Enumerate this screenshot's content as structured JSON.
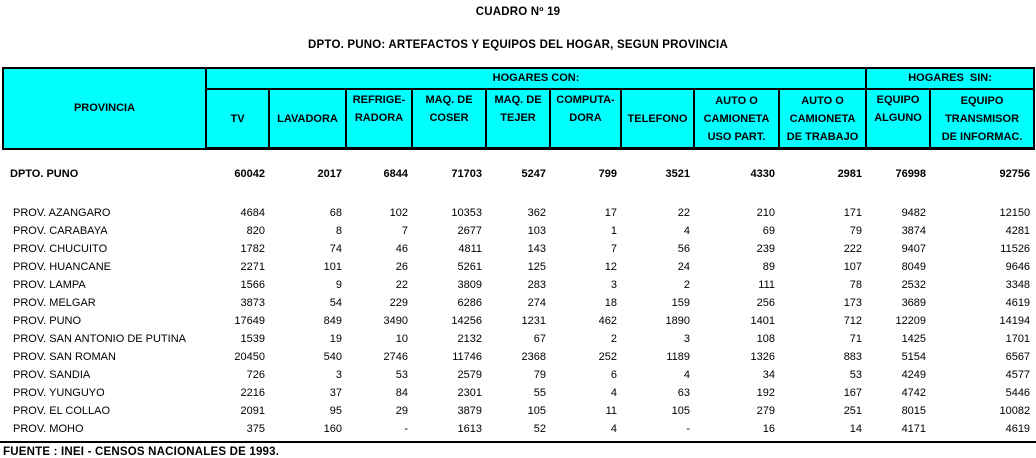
{
  "title": "CUADRO Nº 19",
  "subtitle": "DPTO. PUNO: ARTEFACTOS Y EQUIPOS DEL HOGAR, SEGUN PROVINCIA",
  "colors": {
    "header_bg": "#00FFFF",
    "border": "#000000",
    "page_bg": "#FFFFFF"
  },
  "table": {
    "group_headers": {
      "provincia": "PROVINCIA",
      "con": "HOGARES CON:",
      "sin": "HOGARES  SIN:"
    },
    "columns": [
      "TV",
      "LAVADORA",
      "REFRIGE-\nRADORA",
      "MAQ. DE\nCOSER",
      "MAQ. DE\nTEJER",
      "COMPUTA-\nDORA",
      "TELEFONO",
      "AUTO O\nCAMIONETA\nUSO PART.",
      "AUTO O\nCAMIONETA\nDE TRABAJO",
      "EQUIPO\nALGUNO",
      "EQUIPO\nTRANSMISOR\nDE INFORMAC."
    ],
    "total_row": {
      "label": "DPTO. PUNO",
      "values": [
        "60042",
        "2017",
        "6844",
        "71703",
        "5247",
        "799",
        "3521",
        "4330",
        "2981",
        "76998",
        "92756"
      ]
    },
    "rows": [
      {
        "label": "PROV. AZANGARO",
        "values": [
          "4684",
          "68",
          "102",
          "10353",
          "362",
          "17",
          "22",
          "210",
          "171",
          "9482",
          "12150"
        ]
      },
      {
        "label": "PROV. CARABAYA",
        "values": [
          "820",
          "8",
          "7",
          "2677",
          "103",
          "1",
          "4",
          "69",
          "79",
          "3874",
          "4281"
        ]
      },
      {
        "label": "PROV. CHUCUITO",
        "values": [
          "1782",
          "74",
          "46",
          "4811",
          "143",
          "7",
          "56",
          "239",
          "222",
          "9407",
          "11526"
        ]
      },
      {
        "label": "PROV. HUANCANE",
        "values": [
          "2271",
          "101",
          "26",
          "5261",
          "125",
          "12",
          "24",
          "89",
          "107",
          "8049",
          "9646"
        ]
      },
      {
        "label": "PROV. LAMPA",
        "values": [
          "1566",
          "9",
          "22",
          "3809",
          "283",
          "3",
          "2",
          "111",
          "78",
          "2532",
          "3348"
        ]
      },
      {
        "label": "PROV. MELGAR",
        "values": [
          "3873",
          "54",
          "229",
          "6286",
          "274",
          "18",
          "159",
          "256",
          "173",
          "3689",
          "4619"
        ]
      },
      {
        "label": "PROV. PUNO",
        "values": [
          "17649",
          "849",
          "3490",
          "14256",
          "1231",
          "462",
          "1890",
          "1401",
          "712",
          "12209",
          "14194"
        ]
      },
      {
        "label": "PROV. SAN ANTONIO DE PUTINA",
        "values": [
          "1539",
          "19",
          "10",
          "2132",
          "67",
          "2",
          "3",
          "108",
          "71",
          "1425",
          "1701"
        ]
      },
      {
        "label": "PROV. SAN ROMAN",
        "values": [
          "20450",
          "540",
          "2746",
          "11746",
          "2368",
          "252",
          "1189",
          "1326",
          "883",
          "5154",
          "6567"
        ]
      },
      {
        "label": "PROV. SANDIA",
        "values": [
          "726",
          "3",
          "53",
          "2579",
          "79",
          "6",
          "4",
          "34",
          "53",
          "4249",
          "4577"
        ]
      },
      {
        "label": "PROV. YUNGUYO",
        "values": [
          "2216",
          "37",
          "84",
          "2301",
          "55",
          "4",
          "63",
          "192",
          "167",
          "4742",
          "5446"
        ]
      },
      {
        "label": "PROV. EL COLLAO",
        "values": [
          "2091",
          "95",
          "29",
          "3879",
          "105",
          "11",
          "105",
          "279",
          "251",
          "8015",
          "10082"
        ]
      },
      {
        "label": "PROV. MOHO",
        "values": [
          "375",
          "160",
          "-",
          "1613",
          "52",
          "4",
          "-",
          "16",
          "14",
          "4171",
          "4619"
        ]
      }
    ]
  },
  "footer": {
    "source": "FUENTE : INEI - CENSOS NACIONALES DE 1993."
  }
}
